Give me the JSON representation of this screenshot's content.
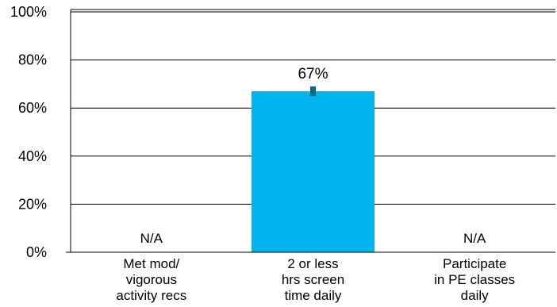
{
  "chart_data": {
    "type": "bar",
    "title": "",
    "xlabel": "",
    "ylabel": "",
    "ylim": [
      0,
      100
    ],
    "yticks": [
      "0%",
      "20%",
      "40%",
      "60%",
      "80%",
      "100%"
    ],
    "grid": true,
    "legend": "none",
    "categories": [
      [
        "Met mod/",
        "vigorous",
        "activity recs"
      ],
      [
        "2 or less",
        "hrs screen",
        "time daily"
      ],
      [
        "Participate",
        "in PE classes",
        "daily"
      ]
    ],
    "values": [
      null,
      67,
      null
    ],
    "data_labels": [
      "N/A",
      "67%",
      "N/A"
    ],
    "error_bars": [
      null,
      {
        "low": 65,
        "high": 69
      },
      null
    ],
    "colors": {
      "bar": "#00b4f0",
      "error_bar": "#006b8f",
      "grid": "#000000",
      "axis": "#000000"
    }
  }
}
